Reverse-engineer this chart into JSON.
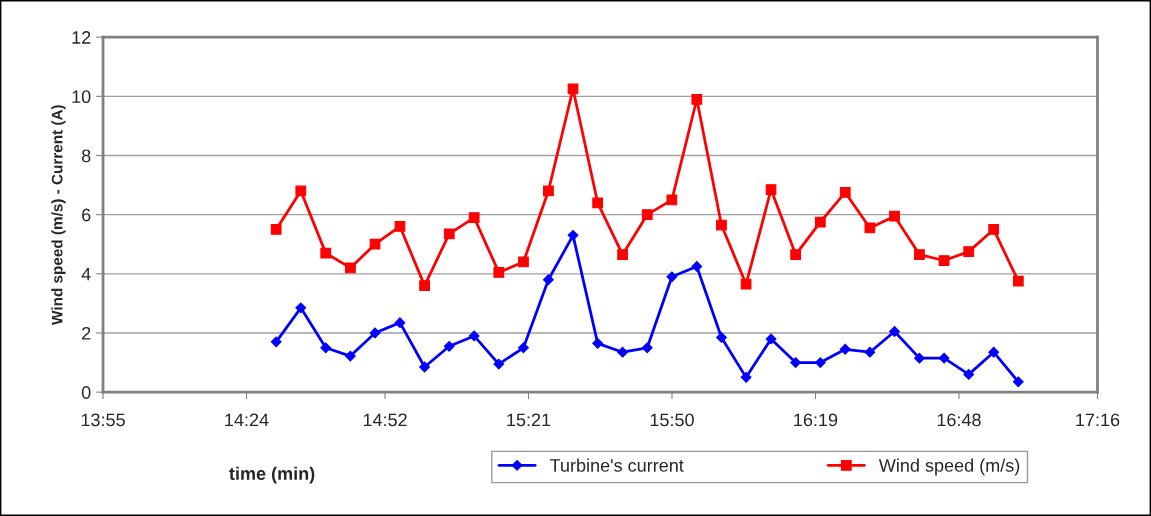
{
  "chart_data": {
    "type": "line",
    "xlabel": "time (min)",
    "ylabel": "Wind speed (m/s) - Current (A)",
    "xlim": [
      13.9167,
      17.2667
    ],
    "ylim": [
      0,
      12
    ],
    "xticks": [
      {
        "value": 13.9167,
        "label": "13:55"
      },
      {
        "value": 14.4,
        "label": "14:24"
      },
      {
        "value": 14.8667,
        "label": "14:52"
      },
      {
        "value": 15.35,
        "label": "15:21"
      },
      {
        "value": 15.8333,
        "label": "15:50"
      },
      {
        "value": 16.3167,
        "label": "16:19"
      },
      {
        "value": 16.8,
        "label": "16:48"
      },
      {
        "value": 17.2667,
        "label": "17:16"
      }
    ],
    "yticks": [
      0,
      2,
      4,
      6,
      8,
      10,
      12
    ],
    "grid": "y",
    "legend": "bottom",
    "line_style": "solid",
    "x": [
      14.5,
      14.583,
      14.667,
      14.75,
      14.833,
      14.917,
      15.0,
      15.083,
      15.167,
      15.25,
      15.333,
      15.417,
      15.5,
      15.583,
      15.667,
      15.75,
      15.833,
      15.917,
      16.0,
      16.083,
      16.167,
      16.25,
      16.333,
      16.417,
      16.5,
      16.583,
      16.667,
      16.75,
      16.833,
      16.917,
      17.0
    ],
    "series": [
      {
        "name": "Turbine's current",
        "color": "#0000ff",
        "marker": "diamond",
        "values": [
          1.7,
          2.85,
          1.5,
          1.22,
          2.0,
          2.35,
          0.85,
          1.55,
          1.9,
          0.95,
          1.5,
          3.8,
          5.3,
          1.65,
          1.35,
          1.5,
          3.9,
          4.25,
          1.85,
          0.5,
          1.8,
          1.0,
          1.0,
          1.45,
          1.35,
          2.05,
          1.15,
          1.15,
          0.6,
          1.35,
          0.35
        ]
      },
      {
        "name": "Wind speed (m/s)",
        "color": "#ff0000",
        "marker": "square",
        "values": [
          5.5,
          6.8,
          4.7,
          4.2,
          5.0,
          5.6,
          3.6,
          5.35,
          5.9,
          4.05,
          4.4,
          6.8,
          10.25,
          6.4,
          4.65,
          6.0,
          6.5,
          9.9,
          5.65,
          3.65,
          6.85,
          4.65,
          5.75,
          6.75,
          5.55,
          5.95,
          4.65,
          4.45,
          4.75,
          5.5,
          3.75
        ]
      }
    ]
  }
}
